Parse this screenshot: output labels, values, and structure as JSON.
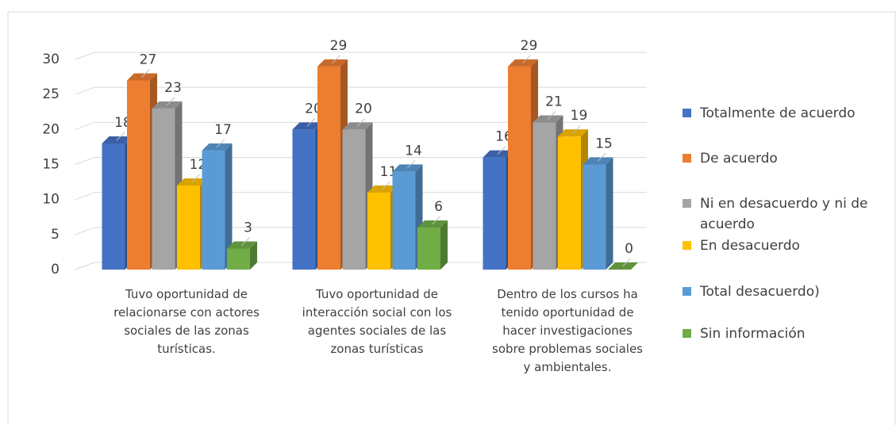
{
  "chart_data": {
    "type": "bar3d",
    "categories": [
      "Tuvo  oportunidad de relacionarse con actores sociales de las zonas turísticas.",
      "Tuvo  oportunidad de interacción social con los agentes sociales de las zonas turísticas",
      "Dentro de los cursos ha tenido oportunidad de hacer investigaciones sobre problemas sociales y ambientales."
    ],
    "series": [
      {
        "name": "Totalmente de acuerdo",
        "color": "#4472c4",
        "values": [
          18,
          20,
          16
        ]
      },
      {
        "name": "De acuerdo",
        "color": "#ed7d31",
        "values": [
          27,
          29,
          29
        ]
      },
      {
        "name": "Ni en desacuerdo y ni de acuerdo",
        "color": "#a5a5a5",
        "values": [
          23,
          20,
          21
        ]
      },
      {
        "name": "En desacuerdo",
        "color": "#ffc000",
        "values": [
          12,
          11,
          19
        ]
      },
      {
        "name": "Total desacuerdo)",
        "color": "#5b9bd5",
        "values": [
          17,
          14,
          15
        ]
      },
      {
        "name": "Sin información",
        "color": "#70ad47",
        "values": [
          3,
          6,
          0
        ]
      }
    ],
    "ylim": [
      0,
      30
    ],
    "yticks": [
      0,
      5,
      10,
      15,
      20,
      25,
      30
    ],
    "grid": true,
    "legend": "right"
  }
}
